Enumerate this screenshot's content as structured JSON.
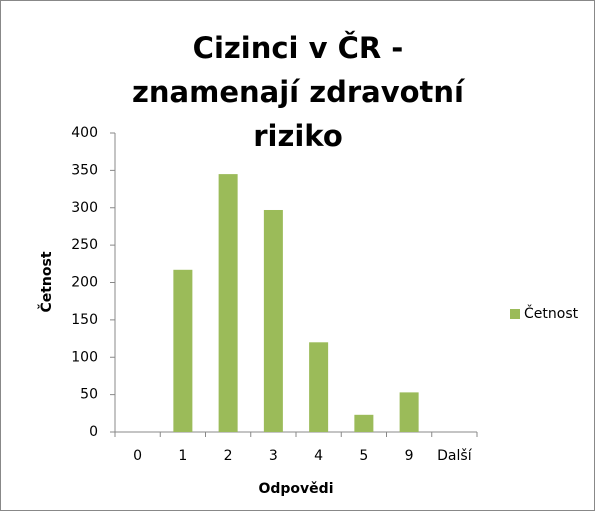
{
  "chart_data": {
    "type": "bar",
    "title": "Cizinci v ČR - znamenají zdravotní riziko",
    "categories": [
      "0",
      "1",
      "2",
      "3",
      "4",
      "5",
      "9",
      "Další"
    ],
    "series": [
      {
        "name": "Četnost",
        "color": "#9bbb59",
        "values": [
          0,
          217,
          345,
          297,
          120,
          23,
          53,
          0
        ]
      }
    ],
    "x_label": "Odpovědi",
    "y_label": "Četnost",
    "ylim": [
      0,
      400
    ],
    "yticks": [
      0,
      50,
      100,
      150,
      200,
      250,
      300,
      350,
      400
    ],
    "grid": false,
    "legend": "right"
  }
}
